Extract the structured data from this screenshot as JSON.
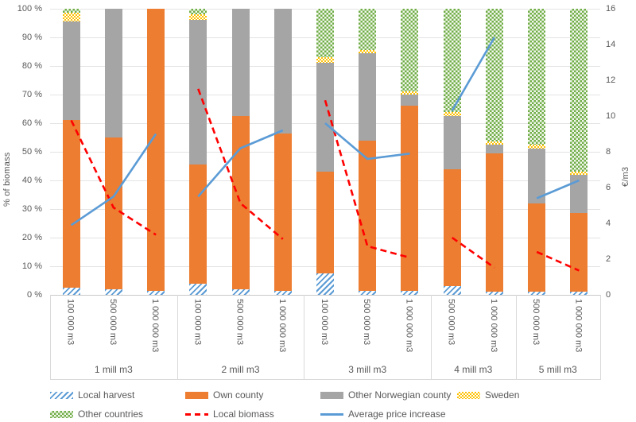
{
  "chart_data": {
    "type": "combo_stacked_bar_lines",
    "title": "",
    "left_axis": {
      "title": "% of biomass",
      "min": 0,
      "max": 100,
      "step": 10,
      "ticks": [
        "0 %",
        "10 %",
        "20 %",
        "30 %",
        "40 %",
        "50 %",
        "60 %",
        "70 %",
        "80 %",
        "90 %",
        "100 %"
      ]
    },
    "right_axis": {
      "title": "€/m3",
      "min": 0,
      "max": 16,
      "step": 2,
      "ticks": [
        "0",
        "2",
        "4",
        "6",
        "8",
        "10",
        "12",
        "14",
        "16"
      ]
    },
    "bar_series_order": [
      "local_harvest",
      "own_county",
      "other_norwegian_county",
      "sweden",
      "other_countries"
    ],
    "groups": [
      {
        "label": "1 mill m3",
        "bars": [
          {
            "label": "100 000 m3",
            "segments": {
              "local_harvest": 2.5,
              "own_county": 58.5,
              "other_norwegian_county": 34.5,
              "sweden": 3,
              "other_countries": 1.5
            }
          },
          {
            "label": "500 000 m3",
            "segments": {
              "local_harvest": 2,
              "own_county": 53,
              "other_norwegian_county": 45,
              "sweden": 0,
              "other_countries": 0
            }
          },
          {
            "label": "1 000 000 m3",
            "segments": {
              "local_harvest": 1.5,
              "own_county": 98.5,
              "other_norwegian_county": 0,
              "sweden": 0,
              "other_countries": 0
            }
          }
        ],
        "local_biomass_pct": [
          61,
          30.5,
          21
        ],
        "avg_price_increase_eur": [
          3.9,
          5.5,
          9.0
        ]
      },
      {
        "label": "2 mill m3",
        "bars": [
          {
            "label": "100 000 m3",
            "segments": {
              "local_harvest": 4,
              "own_county": 41.5,
              "other_norwegian_county": 50.5,
              "sweden": 2,
              "other_countries": 2
            }
          },
          {
            "label": "500 000 m3",
            "segments": {
              "local_harvest": 2,
              "own_county": 60.5,
              "other_norwegian_county": 37.5,
              "sweden": 0,
              "other_countries": 0
            }
          },
          {
            "label": "1 000 000 m3",
            "segments": {
              "local_harvest": 1.5,
              "own_county": 55,
              "other_norwegian_county": 43.5,
              "sweden": 0,
              "other_countries": 0
            }
          }
        ],
        "local_biomass_pct": [
          72,
          32,
          19.5
        ],
        "avg_price_increase_eur": [
          5.5,
          8.2,
          9.2
        ]
      },
      {
        "label": "3 mill m3",
        "bars": [
          {
            "label": "100 000 m3",
            "segments": {
              "local_harvest": 7.5,
              "own_county": 35.5,
              "other_norwegian_county": 38,
              "sweden": 2,
              "other_countries": 17
            }
          },
          {
            "label": "500 000 m3",
            "segments": {
              "local_harvest": 1.5,
              "own_county": 52.5,
              "other_norwegian_county": 30.5,
              "sweden": 1,
              "other_countries": 14.5
            }
          },
          {
            "label": "1 000 000 m3",
            "segments": {
              "local_harvest": 1.5,
              "own_county": 64.5,
              "other_norwegian_county": 4,
              "sweden": 1,
              "other_countries": 29
            }
          }
        ],
        "local_biomass_pct": [
          68,
          17,
          13
        ],
        "avg_price_increase_eur": [
          9.6,
          7.6,
          7.9
        ]
      },
      {
        "label": "4 mill m3",
        "bars": [
          {
            "label": "500 000 m3",
            "segments": {
              "local_harvest": 3,
              "own_county": 41,
              "other_norwegian_county": 18.5,
              "sweden": 1.5,
              "other_countries": 36
            }
          },
          {
            "label": "1 000 000 m3",
            "segments": {
              "local_harvest": 1,
              "own_county": 48.5,
              "other_norwegian_county": 3,
              "sweden": 1,
              "other_countries": 46.5
            }
          }
        ],
        "local_biomass_pct": [
          20,
          9.5
        ],
        "avg_price_increase_eur": [
          10.3,
          14.4
        ]
      },
      {
        "label": "5 mill m3",
        "bars": [
          {
            "label": "500 000 m3",
            "segments": {
              "local_harvest": 1,
              "own_county": 31,
              "other_norwegian_county": 19,
              "sweden": 1.5,
              "other_countries": 47.5
            }
          },
          {
            "label": "1 000 000 m3",
            "segments": {
              "local_harvest": 1,
              "own_county": 27.5,
              "other_norwegian_county": 13.5,
              "sweden": 1,
              "other_countries": 57
            }
          }
        ],
        "local_biomass_pct": [
          15,
          8.5
        ],
        "avg_price_increase_eur": [
          5.4,
          6.4
        ]
      }
    ],
    "legend": {
      "rows": [
        [
          {
            "key": "local_harvest",
            "label": "Local harvest",
            "swatch": "hatch-blue"
          },
          {
            "key": "own_county",
            "label": "Own county",
            "swatch": "solid-orange"
          },
          {
            "key": "other_norwegian_county",
            "label": "Other Norwegian county",
            "swatch": "solid-gray"
          },
          {
            "key": "sweden",
            "label": "Sweden",
            "swatch": "checker-yellow"
          }
        ],
        [
          {
            "key": "other_countries",
            "label": "Other countries",
            "swatch": "checker-green"
          },
          {
            "key": "local_biomass",
            "label": "Local biomass",
            "swatch": "dashed-red"
          },
          {
            "key": "avg_price_increase",
            "label": "Average price increase",
            "swatch": "line-blue"
          }
        ]
      ]
    },
    "colors": {
      "own_county": "#ED7D31",
      "other_norwegian_county": "#A5A5A5",
      "sweden": "#FFC000",
      "other_countries": "#70AD47",
      "local_harvest": "#5B9BD5",
      "local_biomass_line": "#FF0000",
      "avg_price_increase_line": "#5B9BD5",
      "axis_text": "#595959",
      "gridline": "#E3E3E3"
    }
  }
}
